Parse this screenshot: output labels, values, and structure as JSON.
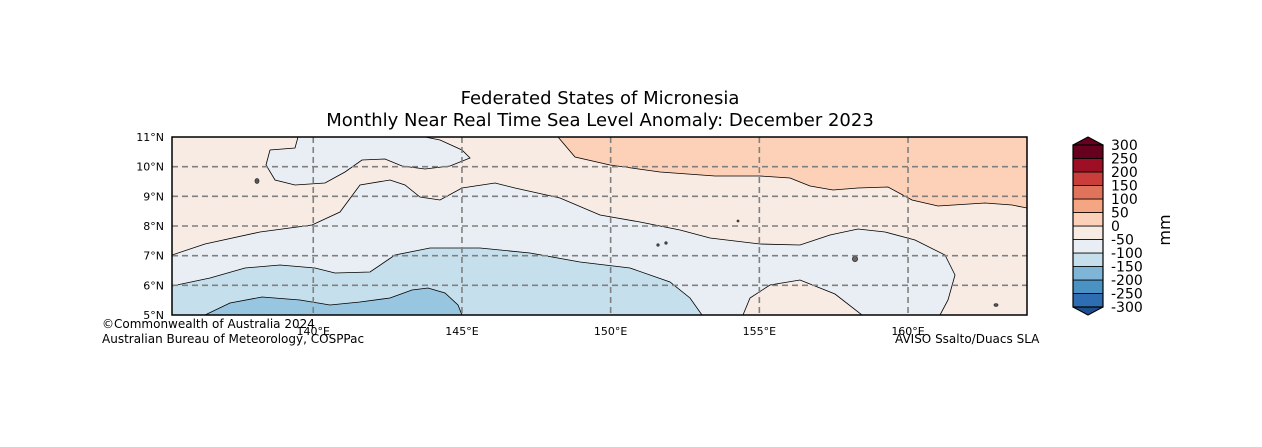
{
  "chart_data": {
    "type": "contour-map",
    "title": "Federated States of Micronesia",
    "subtitle": "Monthly Near Real Time Sea Level Anomaly: December 2023",
    "x_axis": {
      "range": [
        135.25,
        164
      ],
      "ticks": [
        140,
        145,
        150,
        155,
        160
      ],
      "tick_labels": [
        "140°E",
        "145°E",
        "150°E",
        "155°E",
        "160°E"
      ]
    },
    "y_axis": {
      "range": [
        5,
        11
      ],
      "ticks": [
        5,
        6,
        7,
        8,
        9,
        10,
        11
      ],
      "tick_labels": [
        "5°N",
        "6°N",
        "7°N",
        "8°N",
        "9°N",
        "10°N",
        "11°N"
      ]
    },
    "grid": "dashed",
    "colorbar": {
      "unit_label": "mm",
      "levels": [
        -300,
        -250,
        -200,
        -150,
        -100,
        -50,
        0,
        50,
        100,
        150,
        200,
        250,
        300
      ],
      "tick_labels": [
        "-300",
        "-250",
        "-200",
        "-150",
        "-100",
        "-50",
        "0",
        "50",
        "100",
        "150",
        "200",
        "250",
        "300"
      ],
      "colors": [
        "#1d4f8f",
        "#2f6db3",
        "#4a91c4",
        "#7fb6d8",
        "#c6dfec",
        "#e8eef3",
        "#f8ebe4",
        "#fcd1b7",
        "#f4a582",
        "#e0735c",
        "#c93d3b",
        "#9c0f25",
        "#67001f"
      ],
      "extend": "both"
    },
    "regions": [
      {
        "range_mm": "0 to 50",
        "fill": "#f8ebe4"
      },
      {
        "range_mm": "50 to 100",
        "fill": "#fcd1b7"
      },
      {
        "range_mm": "-50 to 0",
        "fill": "#e8eef3"
      },
      {
        "range_mm": "-100 to -50",
        "fill": "#c6dfec"
      },
      {
        "range_mm": "-150 to -100",
        "fill": "#98c6e0"
      }
    ]
  },
  "credits": {
    "left_line1": "©Commonwealth of Australia 2024",
    "left_line2": "Australian Bureau of Meteorology, COSPPac",
    "right": "AVISO Ssalto/Duacs SLA"
  }
}
